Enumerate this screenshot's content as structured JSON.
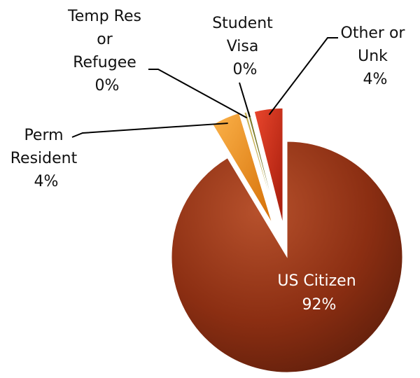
{
  "chart_data": {
    "type": "pie",
    "exploded": true,
    "legend": "none",
    "slices": [
      {
        "name": "US Citizen",
        "value": 92,
        "label": "92%",
        "color": "#8b2e12"
      },
      {
        "name": "Perm Resident",
        "value": 4,
        "label": "4%",
        "color": "#e88a12"
      },
      {
        "name": "Temp Res or Refugee",
        "value": 0,
        "label": "0%",
        "color": "#c9b45a"
      },
      {
        "name": "Student Visa",
        "value": 0,
        "label": "0%",
        "color": "#7a7a2a"
      },
      {
        "name": "Other or Unk",
        "value": 4,
        "label": "4%",
        "color": "#cc2a14"
      }
    ]
  }
}
